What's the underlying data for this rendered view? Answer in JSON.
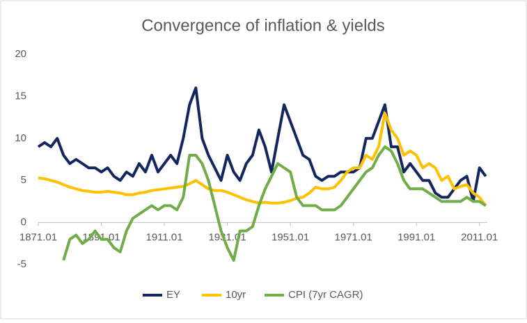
{
  "chart_data": {
    "type": "line",
    "title": "Convergence of inflation & yields",
    "x": [
      1871.01,
      1873.01,
      1875.01,
      1877.01,
      1879.01,
      1881.01,
      1883.01,
      1885.01,
      1887.01,
      1889.01,
      1891.01,
      1893.01,
      1895.01,
      1897.01,
      1899.01,
      1901.01,
      1903.01,
      1905.01,
      1907.01,
      1909.01,
      1911.01,
      1913.01,
      1915.01,
      1917.01,
      1919.01,
      1921.01,
      1923.01,
      1925.01,
      1927.01,
      1929.01,
      1931.01,
      1933.01,
      1935.01,
      1937.01,
      1939.01,
      1941.01,
      1943.01,
      1945.01,
      1947.01,
      1949.01,
      1951.01,
      1953.01,
      1955.01,
      1957.01,
      1959.01,
      1961.01,
      1963.01,
      1965.01,
      1967.01,
      1969.01,
      1971.01,
      1973.01,
      1975.01,
      1977.01,
      1979.01,
      1981.01,
      1983.01,
      1985.01,
      1987.01,
      1989.01,
      1991.01,
      1993.01,
      1995.01,
      1997.01,
      1999.01,
      2001.01,
      2003.01,
      2005.01,
      2007.01,
      2009.01,
      2011.01,
      2013.01
    ],
    "series": [
      {
        "name": "EY",
        "color": "#13275e",
        "values": [
          9,
          9.5,
          9,
          10,
          8,
          7,
          7.5,
          7,
          6.5,
          6.5,
          6,
          6.5,
          5.5,
          5,
          6,
          5.5,
          7,
          6,
          8,
          6,
          7,
          8,
          7,
          10,
          14,
          16,
          10,
          8,
          6.5,
          5,
          8,
          6,
          5,
          7,
          8,
          11,
          9,
          6,
          10,
          14,
          12,
          10,
          8,
          7.5,
          5.5,
          5,
          5.5,
          5.5,
          6,
          6,
          6,
          6.5,
          10,
          10,
          12,
          14,
          9,
          9,
          6,
          7,
          6,
          5,
          5,
          3.5,
          3,
          3,
          4,
          5,
          5.5,
          2.5,
          6.5,
          5.5
        ]
      },
      {
        "name": "10yr",
        "color": "#ffc000",
        "values": [
          5.3,
          5.2,
          5,
          4.8,
          4.5,
          4.2,
          4,
          3.8,
          3.7,
          3.6,
          3.6,
          3.7,
          3.6,
          3.5,
          3.3,
          3.3,
          3.5,
          3.6,
          3.8,
          3.9,
          4,
          4.1,
          4.2,
          4.3,
          4.6,
          5,
          4.5,
          4,
          3.8,
          3.8,
          3.6,
          3.3,
          3,
          2.7,
          2.5,
          2.3,
          2.4,
          2.3,
          2.3,
          2.4,
          2.6,
          2.9,
          3,
          3.5,
          4.2,
          4,
          4,
          4.2,
          5,
          6,
          6.5,
          6.5,
          8,
          7.5,
          9,
          13,
          11,
          10,
          8,
          8.5,
          8,
          6.5,
          7,
          6.5,
          5,
          5.5,
          4,
          4.3,
          4.5,
          3.5,
          3,
          2
        ]
      },
      {
        "name": "CPI (7yr CAGR)",
        "color": "#70ad47",
        "values": [
          null,
          null,
          null,
          null,
          -4.5,
          -2,
          -1.5,
          -2.5,
          -2,
          -1,
          -2,
          -2,
          -3,
          -3.5,
          -1,
          0.5,
          1,
          1.5,
          2,
          1.5,
          2,
          2,
          1.5,
          3,
          8,
          8,
          7,
          5,
          2,
          -1,
          -3,
          -4.5,
          -1,
          -1,
          -0.5,
          2,
          4,
          5.5,
          7,
          6.5,
          6,
          3,
          2,
          2,
          2,
          1.5,
          1.5,
          1.5,
          2,
          3,
          4,
          5,
          6,
          6.5,
          8,
          9,
          8.5,
          7,
          5,
          4,
          4,
          4,
          3.5,
          3,
          2.5,
          2.5,
          2.5,
          2.5,
          3,
          2.5,
          2.5,
          2
        ]
      }
    ],
    "xlim": [
      1871.01,
      2013.5
    ],
    "xticks": [
      1871.01,
      1891.01,
      1911.01,
      1931.01,
      1951.01,
      1971.01,
      1991.01,
      2011.01
    ],
    "ylim": [
      -5,
      20
    ],
    "yticks": [
      -5,
      0,
      5,
      10,
      15,
      20
    ],
    "grid": false,
    "legend": "bottom"
  }
}
